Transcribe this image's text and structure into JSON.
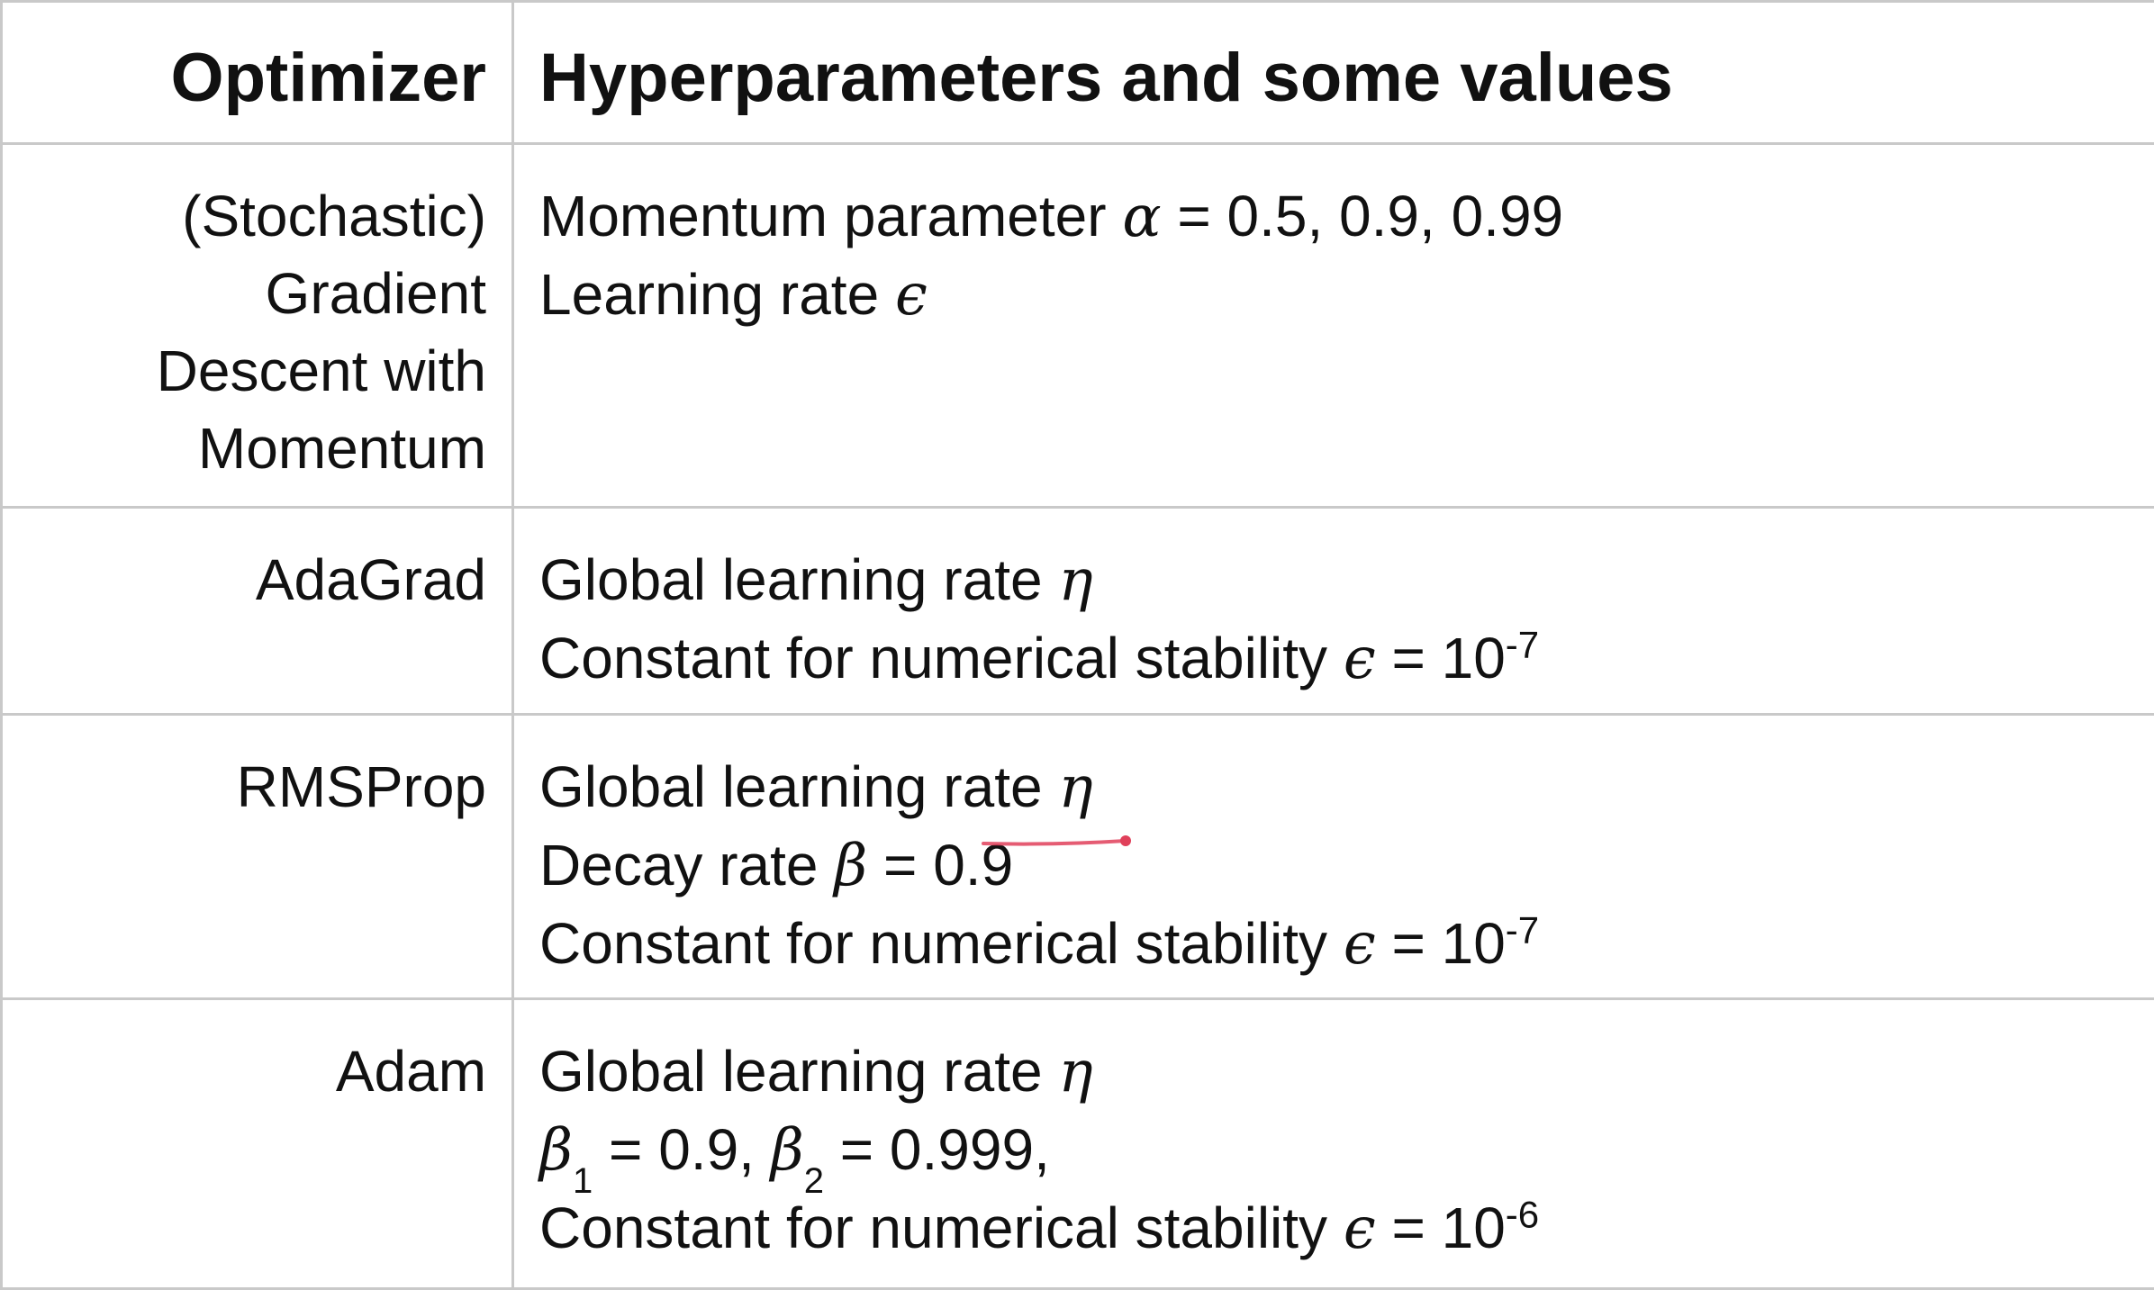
{
  "header": {
    "col1": "Optimizer",
    "col2": "Hyperparameters and some values"
  },
  "rows": [
    {
      "optimizer_lines": [
        "(Stochastic)",
        "Gradient",
        "Descent with",
        "Momentum"
      ],
      "params": {
        "l1_text": "Momentum parameter ",
        "l1_sym": "α",
        "l1_rest": " = 0.5, 0.9, 0.99",
        "l2_text": "Learning rate ",
        "l2_sym": "ϵ"
      }
    },
    {
      "optimizer_lines": [
        "AdaGrad"
      ],
      "params": {
        "l1_text": "Global learning rate ",
        "l1_sym": "η",
        "l2_text": "Constant for numerical stability ",
        "l2_sym": "ϵ",
        "l2_rest": " = 10",
        "l2_sup": "-7"
      }
    },
    {
      "optimizer_lines": [
        "RMSProp"
      ],
      "params": {
        "l1_text": "Global learning rate ",
        "l1_sym": "η",
        "l2_text": "Decay rate ",
        "l2_sym": "β",
        "l2_rest": " = 0.9",
        "l3_text": "Constant for numerical stability ",
        "l3_sym": "ϵ",
        "l3_rest": " = 10",
        "l3_sup": "-7"
      }
    },
    {
      "optimizer_lines": [
        "Adam"
      ],
      "params": {
        "l1_text": "Global learning rate ",
        "l1_sym": "η",
        "l2_sym_a": "β",
        "l2_sub_a": "1",
        "l2_mid": " = 0.9, ",
        "l2_sym_b": "β",
        "l2_sub_b": "2",
        "l2_rest": " = 0.999,",
        "l3_text": "Constant for numerical stability ",
        "l3_sym": "ϵ",
        "l3_rest": " = 10",
        "l3_sup": "-6"
      }
    }
  ],
  "colors": {
    "border": "#c9c9c9",
    "text": "#111111",
    "pen_mark": "#e0405a"
  }
}
